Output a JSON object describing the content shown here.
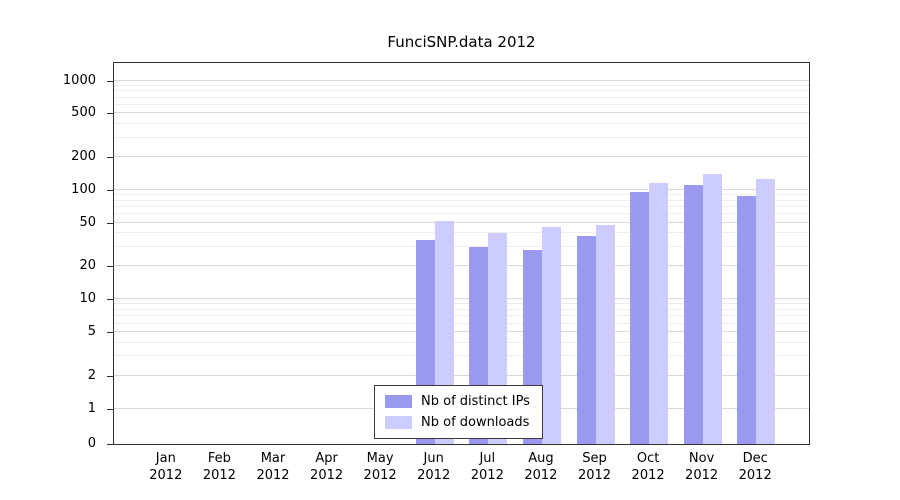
{
  "chart_data": {
    "type": "grouped-bar",
    "title": "FunciSNP.data 2012",
    "y_scale": "log",
    "y_ticks": [
      0,
      1,
      2,
      5,
      10,
      20,
      50,
      100,
      200,
      500,
      1000
    ],
    "ylim": [
      0,
      1000
    ],
    "grid": "horizontal-major-and-minor",
    "legend_position": "bottom-center-inside",
    "months": [
      "Jan",
      "Feb",
      "Mar",
      "Apr",
      "May",
      "Jun",
      "Jul",
      "Aug",
      "Sep",
      "Oct",
      "Nov",
      "Dec"
    ],
    "x_year": "2012",
    "colors": {
      "ips": "#9999ee",
      "downloads": "#ccccff"
    },
    "series": [
      {
        "name": "Nb of distinct IPs",
        "values": [
          0,
          0,
          0,
          0,
          0,
          35,
          30,
          28,
          38,
          95,
          110,
          88
        ]
      },
      {
        "name": "Nb of downloads",
        "values": [
          0,
          0,
          0,
          0,
          0,
          52,
          40,
          46,
          48,
          115,
          140,
          125
        ]
      }
    ]
  }
}
